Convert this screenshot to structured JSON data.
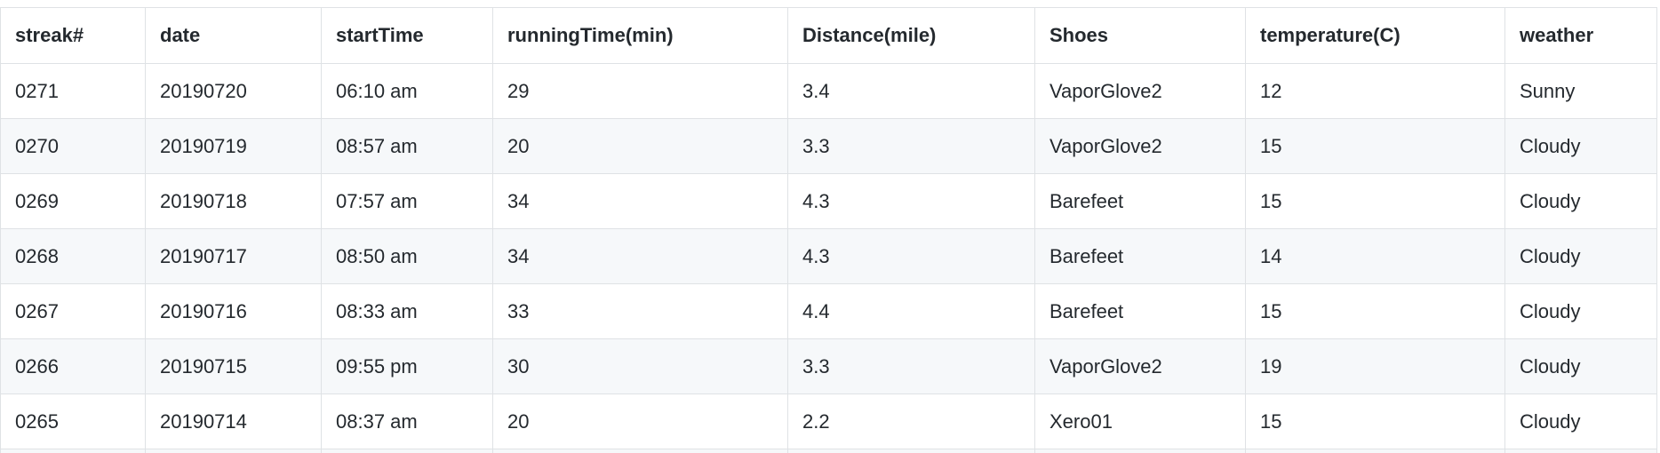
{
  "table": {
    "headers": [
      "streak#",
      "date",
      "startTime",
      "runningTime(min)",
      "Distance(mile)",
      "Shoes",
      "temperature(C)",
      "weather"
    ],
    "rows": [
      [
        "0271",
        "20190720",
        "06:10 am",
        "29",
        "3.4",
        "VaporGlove2",
        "12",
        "Sunny"
      ],
      [
        "0270",
        "20190719",
        "08:57 am",
        "20",
        "3.3",
        "VaporGlove2",
        "15",
        "Cloudy"
      ],
      [
        "0269",
        "20190718",
        "07:57 am",
        "34",
        "4.3",
        "Barefeet",
        "15",
        "Cloudy"
      ],
      [
        "0268",
        "20190717",
        "08:50 am",
        "34",
        "4.3",
        "Barefeet",
        "14",
        "Cloudy"
      ],
      [
        "0267",
        "20190716",
        "08:33 am",
        "33",
        "4.4",
        "Barefeet",
        "15",
        "Cloudy"
      ],
      [
        "0266",
        "20190715",
        "09:55 pm",
        "30",
        "3.3",
        "VaporGlove2",
        "19",
        "Cloudy"
      ],
      [
        "0265",
        "20190714",
        "08:37 am",
        "20",
        "2.2",
        "Xero01",
        "15",
        "Cloudy"
      ]
    ]
  }
}
